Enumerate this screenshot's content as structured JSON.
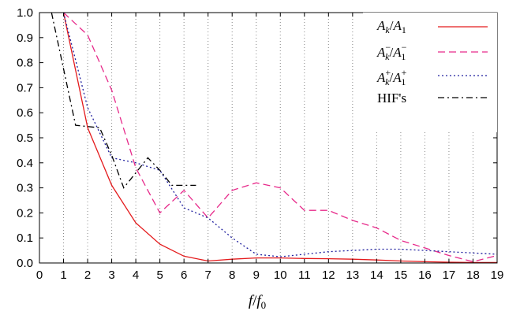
{
  "chart_data": {
    "type": "line",
    "xlabel": "f/f0",
    "ylabel": "",
    "xlim": [
      0,
      19
    ],
    "ylim": [
      0,
      1.0
    ],
    "x_ticks": [
      0,
      1,
      2,
      3,
      4,
      5,
      6,
      7,
      8,
      9,
      10,
      11,
      12,
      13,
      14,
      15,
      16,
      17,
      18,
      19
    ],
    "y_ticks": [
      0.0,
      0.1,
      0.2,
      0.3,
      0.4,
      0.5,
      0.6,
      0.7,
      0.8,
      0.9,
      1.0
    ],
    "y_tick_labels": [
      "0.0",
      "0.1",
      "0.2",
      "0.3",
      "0.4",
      "0.5",
      "0.6",
      "0.7",
      "0.8",
      "0.9",
      "1.0"
    ],
    "grid": "vertical dotted lines at every integer x",
    "legend_position": "top-right",
    "series": [
      {
        "name": "Ak/A1",
        "color": "#e41a1c",
        "dash": "solid",
        "x": [
          1,
          2,
          3,
          4,
          5,
          6,
          7,
          8,
          9,
          10,
          11,
          12,
          13,
          14,
          15,
          16,
          17,
          18,
          19
        ],
        "y": [
          1.0,
          0.54,
          0.31,
          0.16,
          0.075,
          0.027,
          0.008,
          0.015,
          0.02,
          0.02,
          0.018,
          0.017,
          0.015,
          0.012,
          0.008,
          0.005,
          0.003,
          0.002,
          0.002
        ]
      },
      {
        "name": "Ak−/A1−",
        "color": "#e7298a",
        "dash": "dashed",
        "x": [
          1,
          2,
          3,
          4,
          5,
          6,
          7,
          8,
          9,
          10,
          11,
          12,
          13,
          14,
          15,
          16,
          17,
          18,
          19
        ],
        "y": [
          1.0,
          0.91,
          0.69,
          0.38,
          0.2,
          0.29,
          0.18,
          0.29,
          0.32,
          0.3,
          0.21,
          0.21,
          0.17,
          0.14,
          0.09,
          0.06,
          0.03,
          0.005,
          0.03
        ]
      },
      {
        "name": "Ak+/A1+",
        "color": "#1f1f9e",
        "dash": "dotted",
        "x": [
          1,
          2,
          3,
          4,
          5,
          6,
          7,
          8,
          9,
          10,
          11,
          12,
          13,
          14,
          15,
          16,
          17,
          18,
          19
        ],
        "y": [
          1.0,
          0.62,
          0.42,
          0.4,
          0.37,
          0.22,
          0.18,
          0.1,
          0.035,
          0.025,
          0.035,
          0.045,
          0.05,
          0.055,
          0.055,
          0.05,
          0.045,
          0.04,
          0.035
        ]
      },
      {
        "name": "HIF's",
        "color": "#000000",
        "dash": "dashdot",
        "x": [
          0.5,
          1.5,
          2.5,
          3.0,
          3.5,
          4.5,
          5.0,
          5.5,
          6.5
        ],
        "y": [
          1.0,
          0.55,
          0.54,
          0.43,
          0.3,
          0.42,
          0.37,
          0.31,
          0.31
        ]
      }
    ]
  }
}
